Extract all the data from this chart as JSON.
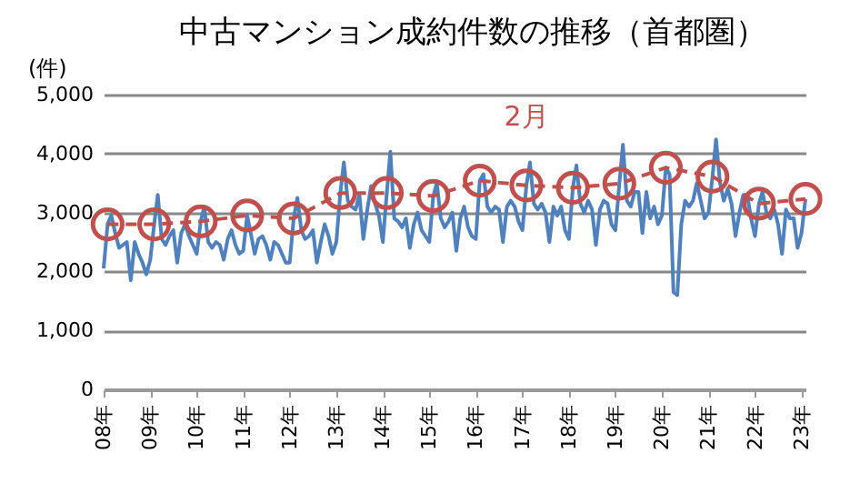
{
  "chart_data": {
    "type": "line",
    "title": "中古マンション成約件数の推移（首都圏）",
    "ylabel": "(件)",
    "xlim": [
      "2008-01",
      "2023-02"
    ],
    "xticks": [
      {
        "value": "2008-01",
        "label": "08年"
      },
      {
        "value": "2009-01",
        "label": "09年"
      },
      {
        "value": "2010-01",
        "label": "10年"
      },
      {
        "value": "2011-01",
        "label": "11年"
      },
      {
        "value": "2012-01",
        "label": "12年"
      },
      {
        "value": "2013-01",
        "label": "13年"
      },
      {
        "value": "2014-01",
        "label": "14年"
      },
      {
        "value": "2015-01",
        "label": "15年"
      },
      {
        "value": "2016-01",
        "label": "16年"
      },
      {
        "value": "2017-01",
        "label": "17年"
      },
      {
        "value": "2018-01",
        "label": "18年"
      },
      {
        "value": "2019-01",
        "label": "19年"
      },
      {
        "value": "2020-01",
        "label": "20年"
      },
      {
        "value": "2021-01",
        "label": "21年"
      },
      {
        "value": "2022-01",
        "label": "22年"
      },
      {
        "value": "2023-01",
        "label": "23年"
      }
    ],
    "ylim": [
      0,
      5000
    ],
    "yticks": [
      {
        "value": 0,
        "label": "0"
      },
      {
        "value": 1000,
        "label": "1,000"
      },
      {
        "value": 2000,
        "label": "2,000"
      },
      {
        "value": 3000,
        "label": "3,000"
      },
      {
        "value": 4000,
        "label": "4,000"
      },
      {
        "value": 5000,
        "label": "5,000"
      }
    ],
    "grid": "y",
    "legend": false,
    "series": [
      {
        "color": "#4f81bd",
        "line_style": "solid",
        "marker": "none",
        "x": [
          "2008-01",
          "2008-02",
          "2008-03",
          "2008-04",
          "2008-05",
          "2008-06",
          "2008-07",
          "2008-08",
          "2008-09",
          "2008-10",
          "2008-11",
          "2008-12",
          "2009-01",
          "2009-02",
          "2009-03",
          "2009-04",
          "2009-05",
          "2009-06",
          "2009-07",
          "2009-08",
          "2009-09",
          "2009-10",
          "2009-11",
          "2009-12",
          "2010-01",
          "2010-02",
          "2010-03",
          "2010-04",
          "2010-05",
          "2010-06",
          "2010-07",
          "2010-08",
          "2010-09",
          "2010-10",
          "2010-11",
          "2010-12",
          "2011-01",
          "2011-02",
          "2011-03",
          "2011-04",
          "2011-05",
          "2011-06",
          "2011-07",
          "2011-08",
          "2011-09",
          "2011-10",
          "2011-11",
          "2011-12",
          "2012-01",
          "2012-02",
          "2012-03",
          "2012-04",
          "2012-05",
          "2012-06",
          "2012-07",
          "2012-08",
          "2012-09",
          "2012-10",
          "2012-11",
          "2012-12",
          "2013-01",
          "2013-02",
          "2013-03",
          "2013-04",
          "2013-05",
          "2013-06",
          "2013-07",
          "2013-08",
          "2013-09",
          "2013-10",
          "2013-11",
          "2013-12",
          "2014-01",
          "2014-02",
          "2014-03",
          "2014-04",
          "2014-05",
          "2014-06",
          "2014-07",
          "2014-08",
          "2014-09",
          "2014-10",
          "2014-11",
          "2014-12",
          "2015-01",
          "2015-02",
          "2015-03",
          "2015-04",
          "2015-05",
          "2015-06",
          "2015-07",
          "2015-08",
          "2015-09",
          "2015-10",
          "2015-11",
          "2015-12",
          "2016-01",
          "2016-02",
          "2016-03",
          "2016-04",
          "2016-05",
          "2016-06",
          "2016-07",
          "2016-08",
          "2016-09",
          "2016-10",
          "2016-11",
          "2016-12",
          "2017-01",
          "2017-02",
          "2017-03",
          "2017-04",
          "2017-05",
          "2017-06",
          "2017-07",
          "2017-08",
          "2017-09",
          "2017-10",
          "2017-11",
          "2017-12",
          "2018-01",
          "2018-02",
          "2018-03",
          "2018-04",
          "2018-05",
          "2018-06",
          "2018-07",
          "2018-08",
          "2018-09",
          "2018-10",
          "2018-11",
          "2018-12",
          "2019-01",
          "2019-02",
          "2019-03",
          "2019-04",
          "2019-05",
          "2019-06",
          "2019-07",
          "2019-08",
          "2019-09",
          "2019-10",
          "2019-11",
          "2019-12",
          "2020-01",
          "2020-02",
          "2020-03",
          "2020-04",
          "2020-05",
          "2020-06",
          "2020-07",
          "2020-08",
          "2020-09",
          "2020-10",
          "2020-11",
          "2020-12",
          "2021-01",
          "2021-02",
          "2021-03",
          "2021-04",
          "2021-05",
          "2021-06",
          "2021-07",
          "2021-08",
          "2021-09",
          "2021-10",
          "2021-11",
          "2021-12",
          "2022-01",
          "2022-02",
          "2022-03",
          "2022-04",
          "2022-05",
          "2022-06",
          "2022-07",
          "2022-08",
          "2022-09",
          "2022-10",
          "2022-11",
          "2022-12",
          "2023-01",
          "2023-02"
        ],
        "values": [
          2050,
          2800,
          2950,
          2650,
          2400,
          2450,
          2500,
          1850,
          2500,
          2300,
          2150,
          1950,
          2200,
          2800,
          3300,
          2550,
          2450,
          2600,
          2700,
          2150,
          2650,
          2800,
          2600,
          2450,
          2300,
          2850,
          3100,
          2500,
          2400,
          2500,
          2450,
          2200,
          2550,
          2700,
          2450,
          2300,
          2350,
          2950,
          2650,
          2300,
          2550,
          2600,
          2450,
          2200,
          2500,
          2450,
          2300,
          2150,
          2150,
          2900,
          3250,
          2700,
          2550,
          2600,
          2700,
          2150,
          2500,
          2800,
          2600,
          2300,
          2500,
          3330,
          3850,
          3200,
          3100,
          3050,
          3300,
          2550,
          3050,
          3450,
          3150,
          2950,
          2500,
          3330,
          4030,
          2900,
          2850,
          2750,
          2900,
          2400,
          2800,
          3000,
          2700,
          2600,
          2500,
          3280,
          3500,
          2900,
          2750,
          2850,
          3000,
          2350,
          2900,
          3100,
          2750,
          2600,
          2550,
          3540,
          3650,
          3100,
          3000,
          3100,
          3050,
          2500,
          3100,
          3200,
          3100,
          2850,
          2700,
          3460,
          3850,
          3150,
          3050,
          3150,
          3000,
          2500,
          3100,
          2950,
          3100,
          2700,
          2550,
          3420,
          3800,
          3150,
          3000,
          3200,
          3050,
          2450,
          3050,
          3200,
          3150,
          2800,
          2700,
          3490,
          4150,
          3200,
          3100,
          3350,
          3350,
          2650,
          3350,
          2900,
          3100,
          2800,
          2950,
          3760,
          3650,
          1650,
          1600,
          2800,
          3200,
          3100,
          3200,
          3500,
          3200,
          2900,
          3000,
          3610,
          4240,
          3500,
          3200,
          3400,
          3150,
          2600,
          3000,
          3300,
          3300,
          2900,
          2600,
          3150,
          3350,
          3000,
          2900,
          3050,
          2800,
          2300,
          3050,
          2900,
          2900,
          2400,
          2650,
          3230
        ]
      },
      {
        "name": "2月",
        "color": "#c0504d",
        "line_style": "dashed",
        "marker": "circle",
        "x": [
          "2008-02",
          "2009-02",
          "2010-02",
          "2011-02",
          "2012-02",
          "2013-02",
          "2014-02",
          "2015-02",
          "2016-02",
          "2017-02",
          "2018-02",
          "2019-02",
          "2020-02",
          "2021-02",
          "2022-02",
          "2023-02"
        ],
        "values": [
          2800,
          2800,
          2850,
          2950,
          2900,
          3330,
          3330,
          3280,
          3540,
          3460,
          3420,
          3490,
          3760,
          3610,
          3150,
          3230
        ]
      }
    ]
  }
}
